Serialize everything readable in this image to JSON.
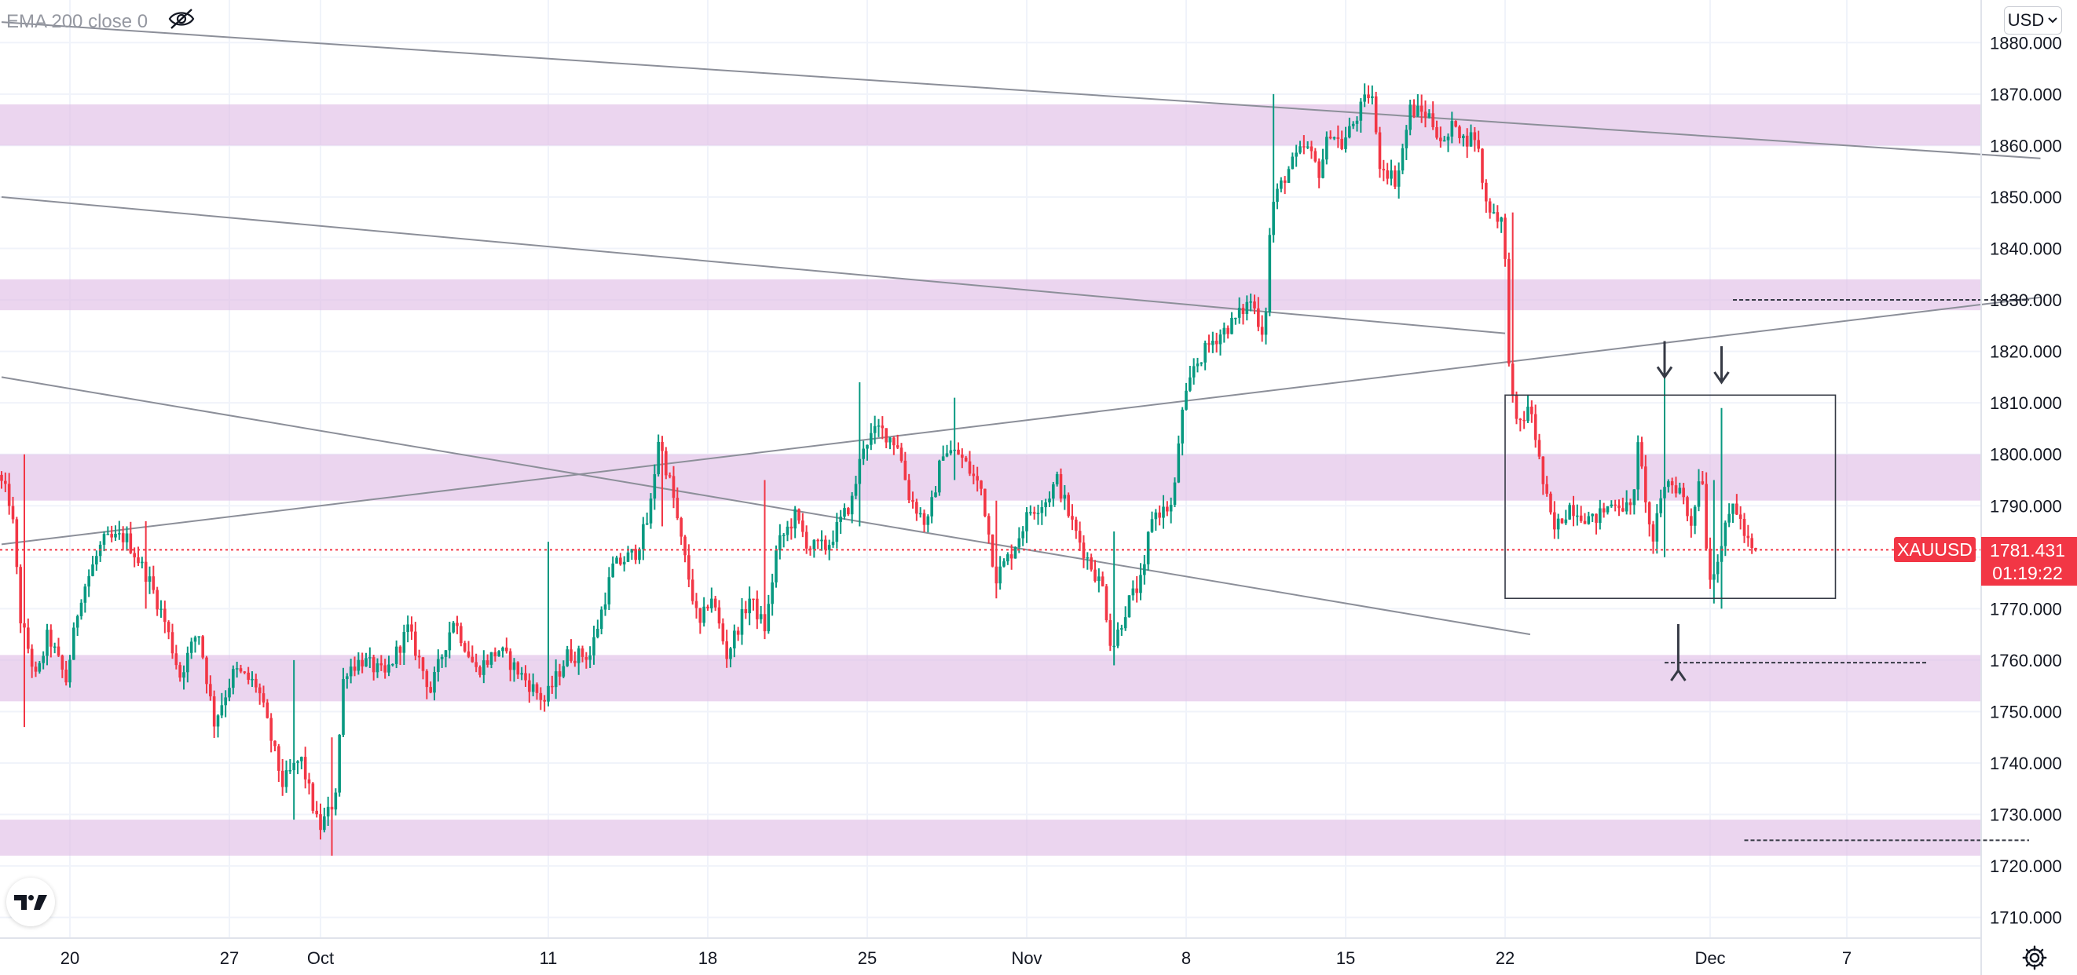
{
  "indicator": {
    "label": "EMA 200 close 0",
    "visibility_icon": "eye-off-icon"
  },
  "currency": {
    "value": "USD",
    "icon": "chevron-down-icon"
  },
  "logo": {
    "text": "TV",
    "icon": "tradingview-logo-icon"
  },
  "settings": {
    "icon": "gear-icon"
  },
  "price_tag": {
    "symbol": "XAUUSD",
    "price": "1781.431",
    "countdown": "01:19:22",
    "color": "#f23645"
  },
  "colors": {
    "up": "#089981",
    "down": "#f23645",
    "zone": "#e1bee7",
    "trendline": "#8c8f99"
  },
  "chart_data": {
    "type": "candlestick",
    "symbol": "XAUUSD",
    "ylim": [
      1707,
      1883
    ],
    "y_ticks": [
      "1710.000",
      "1720.000",
      "1730.000",
      "1740.000",
      "1750.000",
      "1760.000",
      "1770.000",
      "1780.000",
      "1790.000",
      "1800.000",
      "1810.000",
      "1820.000",
      "1830.000",
      "1840.000",
      "1850.000",
      "1860.000",
      "1870.000",
      "1880.000"
    ],
    "x_ticks": [
      {
        "label": "20",
        "t": 0
      },
      {
        "label": "27",
        "t": 7
      },
      {
        "label": "Oct",
        "t": 11
      },
      {
        "label": "11",
        "t": 21
      },
      {
        "label": "18",
        "t": 28
      },
      {
        "label": "25",
        "t": 35
      },
      {
        "label": "Nov",
        "t": 42
      },
      {
        "label": "8",
        "t": 49
      },
      {
        "label": "15",
        "t": 56
      },
      {
        "label": "22",
        "t": 63
      },
      {
        "label": "Dec",
        "t": 72
      },
      {
        "label": "7",
        "t": 78
      }
    ],
    "t_range": [
      -3,
      86.5
    ],
    "bars_per_day": 6,
    "anchors": [
      [
        -3,
        1796
      ],
      [
        -2.4,
        1790
      ],
      [
        -2,
        1768
      ],
      [
        -1.3,
        1756
      ],
      [
        -0.8,
        1765
      ],
      [
        0,
        1756
      ],
      [
        0.6,
        1772
      ],
      [
        1.6,
        1783
      ],
      [
        2.6,
        1784
      ],
      [
        3.6,
        1776
      ],
      [
        4.3,
        1768
      ],
      [
        5,
        1757
      ],
      [
        5.8,
        1766
      ],
      [
        6.5,
        1748
      ],
      [
        7.4,
        1758
      ],
      [
        8.4,
        1755
      ],
      [
        9.5,
        1736
      ],
      [
        10.3,
        1741
      ],
      [
        11.1,
        1727
      ],
      [
        11.8,
        1733
      ],
      [
        12.2,
        1758
      ],
      [
        13,
        1760
      ],
      [
        14,
        1757
      ],
      [
        15,
        1766
      ],
      [
        16,
        1754
      ],
      [
        17,
        1768
      ],
      [
        18,
        1758
      ],
      [
        19,
        1762
      ],
      [
        20,
        1757
      ],
      [
        21,
        1752
      ],
      [
        22,
        1761
      ],
      [
        23,
        1761
      ],
      [
        24,
        1778
      ],
      [
        25,
        1781
      ],
      [
        25.6,
        1788
      ],
      [
        26,
        1803
      ],
      [
        26.6,
        1793
      ],
      [
        27,
        1783
      ],
      [
        27.8,
        1766
      ],
      [
        28.3,
        1773
      ],
      [
        29,
        1761
      ],
      [
        30,
        1772
      ],
      [
        30.7,
        1766
      ],
      [
        31.2,
        1782
      ],
      [
        32,
        1788
      ],
      [
        32.6,
        1782
      ],
      [
        33.4,
        1782
      ],
      [
        34,
        1787
      ],
      [
        34.5,
        1791
      ],
      [
        35,
        1802
      ],
      [
        35.7,
        1805
      ],
      [
        36.5,
        1802
      ],
      [
        37,
        1792
      ],
      [
        37.8,
        1786
      ],
      [
        38.5,
        1801
      ],
      [
        39.2,
        1800
      ],
      [
        40.2,
        1793
      ],
      [
        40.8,
        1776
      ],
      [
        41.5,
        1781
      ],
      [
        42.3,
        1789
      ],
      [
        43,
        1791
      ],
      [
        43.5,
        1795
      ],
      [
        44.2,
        1786
      ],
      [
        44.8,
        1780
      ],
      [
        45.5,
        1774
      ],
      [
        45.9,
        1762
      ],
      [
        46.6,
        1771
      ],
      [
        47.3,
        1776
      ],
      [
        47.6,
        1788
      ],
      [
        48.6,
        1790
      ],
      [
        48.9,
        1806
      ],
      [
        49.5,
        1817
      ],
      [
        50.3,
        1822
      ],
      [
        51.3,
        1826
      ],
      [
        52,
        1830
      ],
      [
        52.6,
        1823
      ],
      [
        52.9,
        1848
      ],
      [
        53.6,
        1855
      ],
      [
        54.4,
        1860
      ],
      [
        55,
        1855
      ],
      [
        55.5,
        1863
      ],
      [
        56,
        1860
      ],
      [
        56.7,
        1866
      ],
      [
        57.3,
        1871
      ],
      [
        57.6,
        1857
      ],
      [
        58.4,
        1853
      ],
      [
        59,
        1867
      ],
      [
        59.8,
        1866
      ],
      [
        60.5,
        1860
      ],
      [
        61,
        1865
      ],
      [
        61.3,
        1861
      ],
      [
        61.9,
        1862
      ],
      [
        62.3,
        1849
      ],
      [
        63.1,
        1845
      ],
      [
        63.3,
        1821
      ],
      [
        63.6,
        1805
      ],
      [
        64.3,
        1809
      ],
      [
        64.8,
        1795
      ],
      [
        65.3,
        1785
      ],
      [
        66,
        1790
      ],
      [
        67,
        1787
      ],
      [
        68,
        1791
      ],
      [
        68.7,
        1789
      ],
      [
        69,
        1801
      ],
      [
        69.3,
        1793
      ],
      [
        69.6,
        1782
      ],
      [
        70.2,
        1795
      ],
      [
        70.9,
        1793
      ],
      [
        71.3,
        1786
      ],
      [
        71.8,
        1798
      ],
      [
        72.1,
        1775
      ],
      [
        72.7,
        1783
      ],
      [
        73.2,
        1791
      ],
      [
        73.7,
        1784
      ],
      [
        74,
        1781
      ]
    ],
    "zones": [
      [
        1860,
        1868
      ],
      [
        1828,
        1834
      ],
      [
        1791,
        1800
      ],
      [
        1752,
        1761
      ],
      [
        1722,
        1729
      ]
    ],
    "trendlines": [
      {
        "from": [
          -3,
          1884
        ],
        "to": [
          86.5,
          1857.5
        ]
      },
      {
        "from": [
          -3,
          1850
        ],
        "to": [
          63,
          1823.5
        ]
      },
      {
        "from": [
          -3,
          1815
        ],
        "to": [
          64.1,
          1765
        ]
      },
      {
        "from": [
          -3,
          1782.5
        ],
        "to": [
          86.5,
          1830.5
        ]
      }
    ],
    "dashed_levels": [
      {
        "t0": 73,
        "t1": 86,
        "y": 1830
      },
      {
        "t0": 70,
        "t1": 81.5,
        "y": 1759.5
      },
      {
        "t0": 73.5,
        "t1": 86,
        "y": 1725
      }
    ],
    "range_box": {
      "t0": 63,
      "t1": 77.5,
      "y_top": 1811.5,
      "y_bottom": 1772
    },
    "arrows": [
      {
        "t": 70,
        "y_from": 1822,
        "y_to": 1815,
        "dir": "down"
      },
      {
        "t": 72.5,
        "y_from": 1821,
        "y_to": 1814,
        "dir": "down"
      },
      {
        "t": 70.6,
        "y_from": 1767,
        "y_to": 1758,
        "dir": "up"
      }
    ],
    "last_price": 1781.431
  }
}
